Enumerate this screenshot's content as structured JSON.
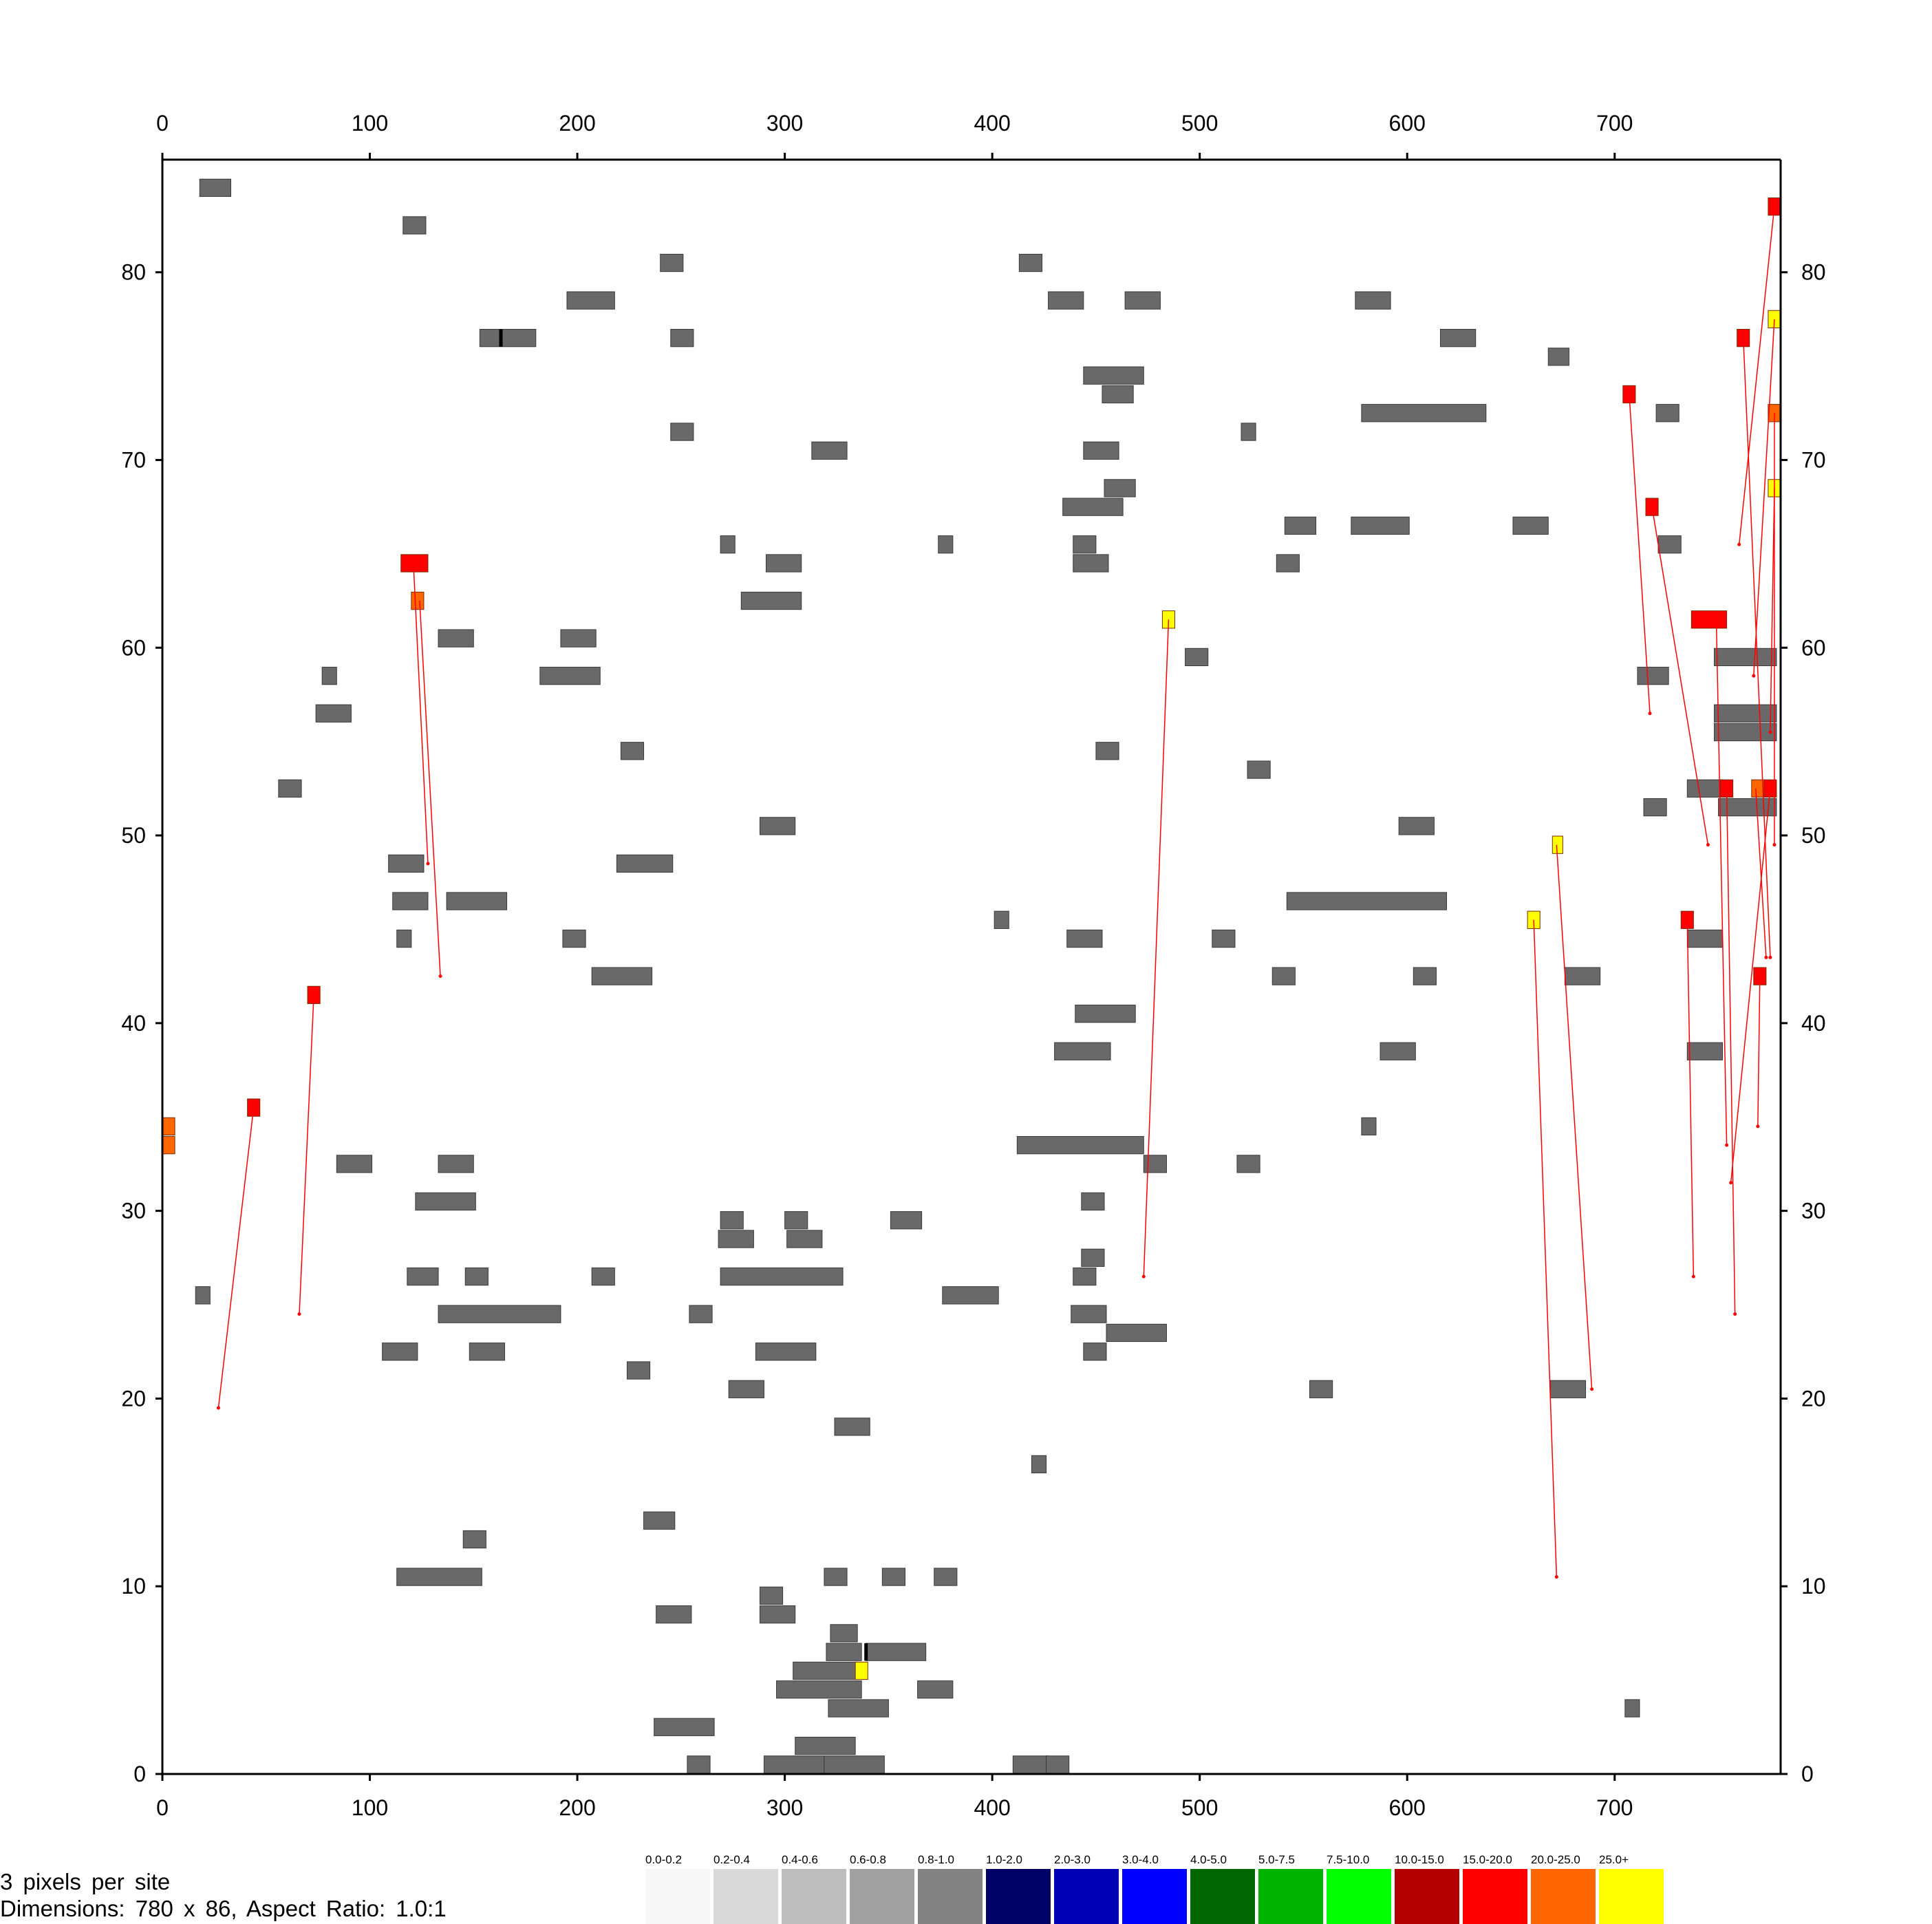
{
  "chart_data": {
    "type": "heatmap",
    "title": "",
    "xlabel": "",
    "ylabel": "",
    "xlim": [
      0,
      780
    ],
    "ylim": [
      0,
      86
    ],
    "grid": false,
    "x_ticks": [
      0,
      100,
      200,
      300,
      400,
      500,
      600,
      700
    ],
    "y_ticks": [
      0,
      10,
      20,
      30,
      40,
      50,
      60,
      70,
      80
    ],
    "footer": {
      "line1": "3 pixels per site",
      "line2": "Dimensions: 780 x 86, Aspect Ratio: 1.0:1"
    },
    "legend": [
      {
        "label": "0.0-0.2",
        "color": "#f7f7f7"
      },
      {
        "label": "0.2-0.4",
        "color": "#d9d9d9"
      },
      {
        "label": "0.4-0.6",
        "color": "#bdbdbd"
      },
      {
        "label": "0.6-0.8",
        "color": "#a0a0a0"
      },
      {
        "label": "0.8-1.0",
        "color": "#828282"
      },
      {
        "label": "1.0-2.0",
        "color": "#000066"
      },
      {
        "label": "2.0-3.0",
        "color": "#0000b4"
      },
      {
        "label": "3.0-4.0",
        "color": "#0000ff"
      },
      {
        "label": "4.0-5.0",
        "color": "#006600"
      },
      {
        "label": "5.0-7.5",
        "color": "#00b400"
      },
      {
        "label": "7.5-10.0",
        "color": "#00ff00"
      },
      {
        "label": "10.0-15.0",
        "color": "#b40000"
      },
      {
        "label": "15.0-20.0",
        "color": "#ff0000"
      },
      {
        "label": "20.0-25.0",
        "color": "#ff6600"
      },
      {
        "label": "25.0+",
        "color": "#ffff00"
      }
    ],
    "gray_color": "#696969",
    "blocks_gray": [
      [
        18,
        33,
        84
      ],
      [
        116,
        127,
        82
      ],
      [
        240,
        251,
        80
      ],
      [
        413,
        424,
        80
      ],
      [
        195,
        218,
        78
      ],
      [
        427,
        444,
        78
      ],
      [
        464,
        481,
        78
      ],
      [
        575,
        592,
        78
      ],
      [
        153,
        180,
        76
      ],
      [
        245,
        256,
        76
      ],
      [
        616,
        633,
        76
      ],
      [
        668,
        678,
        75
      ],
      [
        444,
        473,
        74
      ],
      [
        453,
        468,
        73
      ],
      [
        578,
        638,
        72
      ],
      [
        720,
        731,
        72
      ],
      [
        245,
        256,
        71
      ],
      [
        520,
        527,
        71
      ],
      [
        313,
        330,
        70
      ],
      [
        444,
        461,
        70
      ],
      [
        454,
        469,
        68
      ],
      [
        434,
        463,
        67
      ],
      [
        541,
        556,
        66
      ],
      [
        573,
        601,
        66
      ],
      [
        651,
        668,
        66
      ],
      [
        269,
        276,
        65
      ],
      [
        374,
        381,
        65
      ],
      [
        439,
        450,
        65
      ],
      [
        721,
        732,
        65
      ],
      [
        291,
        308,
        64
      ],
      [
        439,
        456,
        64
      ],
      [
        537,
        548,
        64
      ],
      [
        279,
        308,
        62
      ],
      [
        493,
        504,
        59
      ],
      [
        748,
        778,
        59
      ],
      [
        133,
        150,
        60
      ],
      [
        192,
        209,
        60
      ],
      [
        77,
        84,
        58
      ],
      [
        182,
        211,
        58
      ],
      [
        711,
        726,
        58
      ],
      [
        74,
        91,
        56
      ],
      [
        748,
        778,
        56
      ],
      [
        748,
        778,
        55
      ],
      [
        221,
        232,
        54
      ],
      [
        450,
        461,
        54
      ],
      [
        523,
        534,
        53
      ],
      [
        56,
        67,
        52
      ],
      [
        735,
        752,
        52
      ],
      [
        714,
        725,
        51
      ],
      [
        750,
        778,
        51
      ],
      [
        288,
        305,
        50
      ],
      [
        596,
        613,
        50
      ],
      [
        109,
        126,
        48
      ],
      [
        219,
        246,
        48
      ],
      [
        111,
        128,
        46
      ],
      [
        137,
        166,
        46
      ],
      [
        542,
        619,
        46
      ],
      [
        401,
        408,
        45
      ],
      [
        113,
        120,
        44
      ],
      [
        193,
        204,
        44
      ],
      [
        436,
        453,
        44
      ],
      [
        506,
        517,
        44
      ],
      [
        735,
        752,
        44
      ],
      [
        207,
        236,
        42
      ],
      [
        535,
        546,
        42
      ],
      [
        603,
        614,
        42
      ],
      [
        676,
        693,
        42
      ],
      [
        440,
        469,
        40
      ],
      [
        430,
        457,
        38
      ],
      [
        587,
        604,
        38
      ],
      [
        735,
        752,
        38
      ],
      [
        578,
        585,
        34
      ],
      [
        412,
        473,
        33
      ],
      [
        84,
        101,
        32
      ],
      [
        133,
        150,
        32
      ],
      [
        473,
        484,
        32
      ],
      [
        518,
        529,
        32
      ],
      [
        122,
        151,
        30
      ],
      [
        443,
        454,
        30
      ],
      [
        269,
        280,
        29
      ],
      [
        300,
        311,
        29
      ],
      [
        351,
        366,
        29
      ],
      [
        268,
        285,
        28
      ],
      [
        301,
        318,
        28
      ],
      [
        443,
        454,
        27
      ],
      [
        118,
        133,
        26
      ],
      [
        146,
        157,
        26
      ],
      [
        207,
        218,
        26
      ],
      [
        269,
        328,
        26
      ],
      [
        439,
        450,
        26
      ],
      [
        16,
        23,
        25
      ],
      [
        376,
        403,
        25
      ],
      [
        133,
        192,
        24
      ],
      [
        254,
        265,
        24
      ],
      [
        438,
        455,
        24
      ],
      [
        455,
        484,
        23
      ],
      [
        106,
        123,
        22
      ],
      [
        148,
        165,
        22
      ],
      [
        286,
        315,
        22
      ],
      [
        444,
        455,
        22
      ],
      [
        224,
        235,
        21
      ],
      [
        273,
        290,
        20
      ],
      [
        553,
        564,
        20
      ],
      [
        669,
        686,
        20
      ],
      [
        324,
        341,
        18
      ],
      [
        419,
        426,
        16
      ],
      [
        232,
        247,
        13
      ],
      [
        145,
        156,
        12
      ],
      [
        113,
        154,
        10
      ],
      [
        319,
        330,
        10
      ],
      [
        347,
        358,
        10
      ],
      [
        372,
        383,
        10
      ],
      [
        288,
        299,
        9
      ],
      [
        238,
        255,
        8
      ],
      [
        288,
        305,
        8
      ],
      [
        322,
        335,
        7
      ],
      [
        320,
        337,
        6
      ],
      [
        339,
        368,
        6
      ],
      [
        304,
        335,
        5
      ],
      [
        296,
        337,
        4
      ],
      [
        364,
        381,
        4
      ],
      [
        321,
        350,
        3
      ],
      [
        705,
        712,
        3
      ],
      [
        237,
        266,
        2
      ],
      [
        305,
        334,
        1
      ],
      [
        253,
        264,
        0
      ],
      [
        290,
        319,
        0
      ],
      [
        319,
        348,
        0
      ],
      [
        410,
        427,
        0
      ],
      [
        426,
        437,
        0
      ]
    ],
    "blocks_color": [
      [
        115,
        128,
        64,
        "#ff0000"
      ],
      [
        120,
        126,
        62,
        "#ff6600"
      ],
      [
        70,
        76,
        41,
        "#ff0000"
      ],
      [
        41,
        47,
        35,
        "#ff0000"
      ],
      [
        0,
        6,
        34,
        "#ff6600"
      ],
      [
        0,
        6,
        33,
        "#ff6600"
      ],
      [
        482,
        488,
        61,
        "#ffff00"
      ],
      [
        334,
        340,
        5,
        "#ffff00"
      ],
      [
        658,
        664,
        45,
        "#ffff00"
      ],
      [
        670,
        675,
        49,
        "#ffff00"
      ],
      [
        774,
        780,
        83,
        "#ff0000"
      ],
      [
        774,
        780,
        77,
        "#ffff00"
      ],
      [
        759,
        765,
        76,
        "#ff0000"
      ],
      [
        704,
        710,
        73,
        "#ff0000"
      ],
      [
        774,
        780,
        72,
        "#ff6600"
      ],
      [
        774,
        780,
        68,
        "#ffff00"
      ],
      [
        715,
        721,
        67,
        "#ff0000"
      ],
      [
        737,
        754,
        61,
        "#ff0000"
      ],
      [
        751,
        757,
        52,
        "#ff0000"
      ],
      [
        766,
        772,
        52,
        "#ff6600"
      ],
      [
        772,
        778,
        52,
        "#ff0000"
      ],
      [
        732,
        738,
        45,
        "#ff0000"
      ],
      [
        767,
        773,
        42,
        "#ff0000"
      ]
    ],
    "black_marks": [
      [
        163,
        76
      ],
      [
        339,
        6
      ]
    ],
    "links": [
      [
        124,
        62,
        134,
        42
      ],
      [
        121,
        64,
        128,
        48
      ],
      [
        73,
        41,
        66,
        24
      ],
      [
        44,
        35,
        27,
        19
      ],
      [
        485,
        61,
        473,
        26
      ],
      [
        661,
        45,
        672,
        10
      ],
      [
        672,
        49,
        689,
        20
      ],
      [
        777,
        83,
        760,
        65
      ],
      [
        777,
        77,
        767,
        58
      ],
      [
        762,
        76,
        775,
        43
      ],
      [
        707,
        73,
        717,
        56
      ],
      [
        777,
        72,
        777,
        49
      ],
      [
        718,
        67,
        745,
        49
      ],
      [
        749,
        61,
        754,
        33
      ],
      [
        754,
        52,
        758,
        24
      ],
      [
        768,
        52,
        773,
        43
      ],
      [
        775,
        52,
        756,
        31
      ],
      [
        735,
        45,
        738,
        26
      ],
      [
        770,
        42,
        769,
        34
      ],
      [
        777,
        68,
        775,
        55
      ]
    ]
  }
}
